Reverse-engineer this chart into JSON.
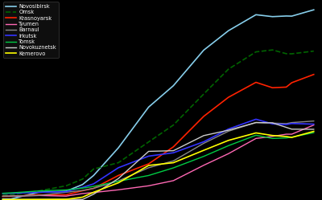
{
  "background_color": "#000000",
  "text_color": "#ffffff",
  "cities": {
    "Novosibirsk": {
      "color": "#87CEEB",
      "linestyle": "-",
      "linewidth": 1.2,
      "data": {
        "1897": 7.8,
        "1900": 8,
        "1910": 60,
        "1920": 68,
        "1926": 120,
        "1930": 190,
        "1939": 404,
        "1950": 720,
        "1959": 886,
        "1970": 1161,
        "1979": 1312,
        "1989": 1436,
        "1995": 1421,
        "2000": 1426,
        "2002": 1425,
        "2010": 1474
      }
    },
    "Omsk": {
      "color": "#006400",
      "linestyle": "--",
      "linewidth": 1.2,
      "data": {
        "1897": 37,
        "1900": 40,
        "1910": 70,
        "1920": 110,
        "1926": 162,
        "1930": 240,
        "1939": 289,
        "1950": 450,
        "1959": 581,
        "1970": 821,
        "1979": 1014,
        "1989": 1148,
        "1995": 1163,
        "2000": 1134,
        "2002": 1133,
        "2010": 1154
      }
    },
    "Krasnoyarsk": {
      "color": "#ff2200",
      "linestyle": "-",
      "linewidth": 1.2,
      "data": {
        "1897": 27,
        "1900": 28,
        "1910": 40,
        "1920": 40,
        "1926": 72,
        "1930": 90,
        "1939": 190,
        "1950": 280,
        "1959": 412,
        "1970": 648,
        "1979": 796,
        "1989": 912,
        "1995": 870,
        "2000": 875,
        "2002": 909,
        "2010": 973
      }
    },
    "Tyumen": {
      "color": "#ff69b4",
      "linestyle": "-",
      "linewidth": 1.0,
      "data": {
        "1897": 29,
        "1900": 30,
        "1910": 35,
        "1920": 30,
        "1926": 50,
        "1930": 58,
        "1939": 79,
        "1950": 110,
        "1959": 150,
        "1970": 269,
        "1979": 359,
        "1989": 477,
        "1995": 493,
        "2000": 510,
        "2002": 510,
        "2010": 581
      }
    },
    "Barnaul": {
      "color": "#888888",
      "linestyle": "-",
      "linewidth": 1.0,
      "data": {
        "1897": 29,
        "1900": 30,
        "1910": 35,
        "1920": 60,
        "1926": 74,
        "1930": 90,
        "1939": 148,
        "1950": 250,
        "1959": 303,
        "1970": 439,
        "1979": 533,
        "1989": 601,
        "1995": 596,
        "2000": 592,
        "2002": 600,
        "2010": 612
      }
    },
    "Irkutsk": {
      "color": "#3333ff",
      "linestyle": "-",
      "linewidth": 1.2,
      "data": {
        "1897": 51,
        "1900": 52,
        "1910": 60,
        "1920": 65,
        "1926": 98,
        "1930": 125,
        "1939": 250,
        "1950": 340,
        "1959": 366,
        "1970": 451,
        "1979": 550,
        "1989": 626,
        "1995": 590,
        "2000": 585,
        "2002": 593,
        "2010": 588
      }
    },
    "Tomsk": {
      "color": "#00cc44",
      "linestyle": "-",
      "linewidth": 1.0,
      "data": {
        "1897": 52,
        "1900": 55,
        "1910": 70,
        "1920": 78,
        "1926": 92,
        "1930": 105,
        "1939": 145,
        "1950": 190,
        "1959": 249,
        "1970": 338,
        "1979": 421,
        "1989": 502,
        "1995": 477,
        "2000": 481,
        "2002": 487,
        "2010": 522
      }
    },
    "Novokuznetsk": {
      "color": "#cccccc",
      "linestyle": "-",
      "linewidth": 1.0,
      "data": {
        "1897": 4,
        "1900": 4.5,
        "1910": 5,
        "1920": 6,
        "1926": 4,
        "1930": 45,
        "1939": 166,
        "1950": 377,
        "1959": 382,
        "1970": 499,
        "1979": 541,
        "1989": 600,
        "1995": 598,
        "2000": 563,
        "2002": 549,
        "2010": 548
      }
    },
    "Kemerovo": {
      "color": "#ffff00",
      "linestyle": "-",
      "linewidth": 1.2,
      "data": {
        "1897": 3,
        "1900": 3,
        "1910": 4,
        "1920": 5,
        "1926": 22,
        "1930": 60,
        "1939": 133,
        "1950": 268,
        "1959": 289,
        "1970": 385,
        "1979": 462,
        "1989": 520,
        "1995": 500,
        "2000": 492,
        "2002": 485,
        "2010": 532
      }
    }
  },
  "city_order": [
    "Novosibirsk",
    "Omsk",
    "Krasnoyarsk",
    "Tyumen",
    "Barnaul",
    "Irkutsk",
    "Tomsk",
    "Novokuznetsk",
    "Kemerovo"
  ],
  "xlim": [
    1896,
    2013
  ],
  "ylim": [
    0,
    1550
  ],
  "figsize": [
    4.0,
    2.49
  ],
  "dpi": 100
}
